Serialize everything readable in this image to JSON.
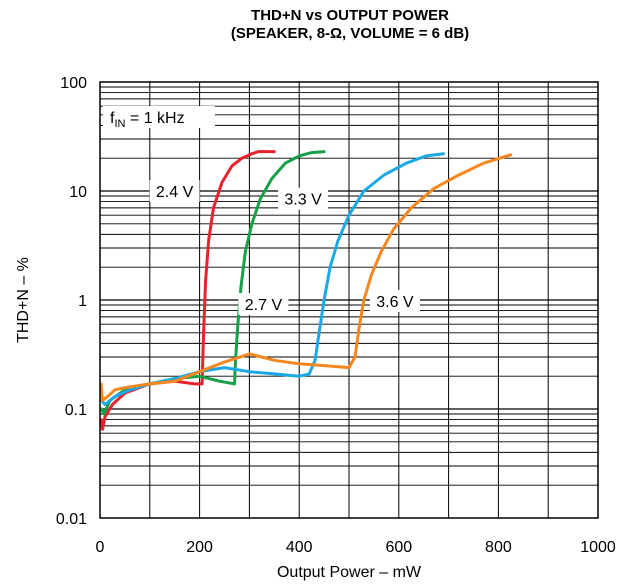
{
  "chart_data": {
    "type": "line",
    "title_line1": "THD+N vs OUTPUT POWER",
    "title_line2": "(SPEAKER, 8-Ω, VOLUME = 6 dB)",
    "xlabel": "Output Power – mW",
    "ylabel": "THD+N – %",
    "xlim": [
      0,
      1000
    ],
    "ylim": [
      0.01,
      100
    ],
    "yscale": "log",
    "grid": true,
    "x_ticks": [
      "0",
      "200",
      "400",
      "600",
      "800",
      "1000"
    ],
    "y_ticks": [
      "100",
      "10",
      "1",
      "0.1",
      "0.01"
    ],
    "x_tick_values": [
      0,
      200,
      400,
      600,
      800,
      1000
    ],
    "y_tick_values": [
      100,
      10,
      1,
      0.1,
      0.01
    ],
    "condition": {
      "prefix": "f",
      "subscript": "IN",
      "suffix": " = 1 kHz"
    },
    "series": [
      {
        "name": "2.4 V",
        "color": "#e8212e",
        "points": [
          [
            2,
            0.08
          ],
          [
            5,
            0.065
          ],
          [
            10,
            0.085
          ],
          [
            25,
            0.11
          ],
          [
            50,
            0.14
          ],
          [
            100,
            0.17
          ],
          [
            150,
            0.18
          ],
          [
            190,
            0.17
          ],
          [
            205,
            0.17
          ],
          [
            208,
            0.5
          ],
          [
            212,
            1.5
          ],
          [
            218,
            3.5
          ],
          [
            228,
            7
          ],
          [
            245,
            12
          ],
          [
            265,
            17
          ],
          [
            285,
            20
          ],
          [
            305,
            22
          ],
          [
            318,
            23
          ],
          [
            350,
            23
          ]
        ]
      },
      {
        "name": "2.7 V",
        "color": "#16a047",
        "points": [
          [
            3,
            0.1
          ],
          [
            8,
            0.09
          ],
          [
            20,
            0.12
          ],
          [
            50,
            0.15
          ],
          [
            100,
            0.17
          ],
          [
            150,
            0.19
          ],
          [
            200,
            0.2
          ],
          [
            240,
            0.18
          ],
          [
            270,
            0.17
          ],
          [
            272,
            0.28
          ],
          [
            277,
            0.6
          ],
          [
            283,
            1.3
          ],
          [
            292,
            2.8
          ],
          [
            305,
            5
          ],
          [
            322,
            8.5
          ],
          [
            345,
            13
          ],
          [
            372,
            18
          ],
          [
            400,
            21
          ],
          [
            425,
            22.5
          ],
          [
            450,
            23
          ]
        ]
      },
      {
        "name": "3.3 V",
        "color": "#1ba9e6",
        "points": [
          [
            3,
            0.12
          ],
          [
            10,
            0.11
          ],
          [
            30,
            0.13
          ],
          [
            60,
            0.15
          ],
          [
            100,
            0.17
          ],
          [
            150,
            0.19
          ],
          [
            200,
            0.22
          ],
          [
            250,
            0.24
          ],
          [
            300,
            0.22
          ],
          [
            350,
            0.21
          ],
          [
            400,
            0.2
          ],
          [
            420,
            0.21
          ],
          [
            432,
            0.28
          ],
          [
            440,
            0.5
          ],
          [
            450,
            1
          ],
          [
            462,
            2
          ],
          [
            478,
            3.5
          ],
          [
            500,
            6
          ],
          [
            530,
            10
          ],
          [
            570,
            14
          ],
          [
            615,
            18
          ],
          [
            655,
            21
          ],
          [
            690,
            22
          ]
        ]
      },
      {
        "name": "3.6 V",
        "color": "#f5871f",
        "points": [
          [
            2,
            0.17
          ],
          [
            5,
            0.12
          ],
          [
            15,
            0.13
          ],
          [
            30,
            0.15
          ],
          [
            60,
            0.16
          ],
          [
            100,
            0.17
          ],
          [
            150,
            0.18
          ],
          [
            200,
            0.22
          ],
          [
            250,
            0.27
          ],
          [
            300,
            0.32
          ],
          [
            350,
            0.28
          ],
          [
            400,
            0.26
          ],
          [
            450,
            0.25
          ],
          [
            500,
            0.24
          ],
          [
            512,
            0.3
          ],
          [
            520,
            0.55
          ],
          [
            530,
            1
          ],
          [
            545,
            1.7
          ],
          [
            565,
            2.8
          ],
          [
            590,
            4.5
          ],
          [
            625,
            7
          ],
          [
            670,
            10.5
          ],
          [
            720,
            14
          ],
          [
            770,
            18
          ],
          [
            825,
            21.5
          ]
        ]
      }
    ],
    "labels": [
      {
        "text": "2.4 V",
        "x": 200,
        "y": 10,
        "anchor": "end"
      },
      {
        "text": "3.3 V",
        "x": 458,
        "y": 8.5,
        "anchor": "end"
      },
      {
        "text": "2.7 V",
        "x": 278,
        "y": 0.92,
        "anchor": "start"
      },
      {
        "text": "3.6 V",
        "x": 542,
        "y": 0.98,
        "anchor": "start"
      }
    ]
  }
}
